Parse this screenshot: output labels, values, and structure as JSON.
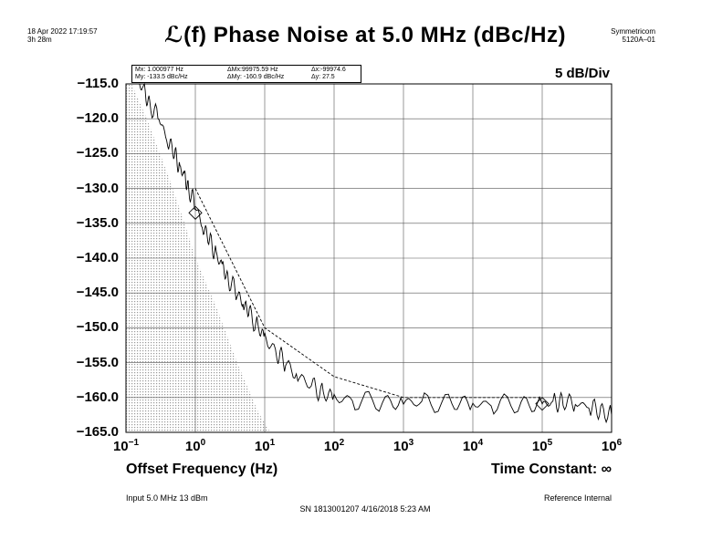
{
  "header": {
    "timestamp": "18 Apr 2022 17:19:57",
    "elapsed": "3h 28m",
    "brand_line1": "Symmetricom",
    "brand_line2": "5120A–01",
    "scale": "5 dB/Div"
  },
  "markers": {
    "mx": "Mx: 1.000977  Hz",
    "my": "My:    -133.5  dBc/Hz",
    "dmx": "ΔMx:99975.59  Hz",
    "dmy": "ΔMy:   -160.9  dBc/Hz",
    "dx": "Δx:-99974.6",
    "dy": "Δy:       27.5"
  },
  "footer": {
    "time_constant": "Time Constant: ∞",
    "input": "Input 5.0 MHz 13 dBm",
    "reference": "Reference Internal",
    "serial": "SN 1813001207 4/16/2018 5:23 AM"
  },
  "chart_data": {
    "type": "line",
    "title": "ℒ(f) Phase Noise at 5.0 MHz (dBc/Hz)",
    "xlabel": "Offset Frequency (Hz)",
    "ylabel": "",
    "x_scale": "log",
    "xlim": [
      0.1,
      1000000
    ],
    "ylim": [
      -165,
      -115
    ],
    "grid": true,
    "y_ticks": [
      "-115.0",
      "-120.0",
      "-125.0",
      "-130.0",
      "-135.0",
      "-140.0",
      "-145.0",
      "-150.0",
      "-155.0",
      "-160.0",
      "-165.0"
    ],
    "x_ticks": [
      {
        "base": "10",
        "exp": "−1",
        "value": 0.1
      },
      {
        "base": "10",
        "exp": "0",
        "value": 1
      },
      {
        "base": "10",
        "exp": "1",
        "value": 10
      },
      {
        "base": "10",
        "exp": "2",
        "value": 100
      },
      {
        "base": "10",
        "exp": "3",
        "value": 1000
      },
      {
        "base": "10",
        "exp": "4",
        "value": 10000
      },
      {
        "base": "10",
        "exp": "5",
        "value": 100000
      },
      {
        "base": "10",
        "exp": "6",
        "value": 1000000
      }
    ],
    "series": [
      {
        "role": "measured",
        "x": [
          0.15,
          0.18,
          0.22,
          0.3,
          0.4,
          0.5,
          0.6,
          0.7,
          0.8,
          1.0,
          1.3,
          1.6,
          2,
          2.5,
          3,
          4,
          5,
          6,
          8,
          10,
          15,
          20,
          30,
          50,
          70,
          100,
          200,
          500,
          1000,
          2000,
          5000,
          10000,
          20000,
          50000,
          100000,
          150000,
          200000,
          300000,
          500000,
          700000,
          1000000
        ],
        "y": [
          -115,
          -116,
          -118,
          -120,
          -123,
          -125,
          -127,
          -128.5,
          -130,
          -132.5,
          -135.5,
          -137.5,
          -139.5,
          -141.5,
          -143,
          -145,
          -146.5,
          -148,
          -150,
          -151.5,
          -153.5,
          -155,
          -157,
          -158.5,
          -159.5,
          -160,
          -160.4,
          -160.6,
          -160.7,
          -160.8,
          -160.8,
          -160.9,
          -160.9,
          -160.9,
          -161,
          -160.8,
          -160.6,
          -160.8,
          -161.3,
          -162,
          -162.5
        ]
      },
      {
        "role": "limit",
        "x": [
          1,
          10,
          100,
          1000,
          100000
        ],
        "y": [
          -130,
          -150,
          -157,
          -160,
          -160
        ]
      }
    ],
    "marker_points": [
      {
        "x": 1.000977,
        "y": -133.5
      },
      {
        "x": 99975.59,
        "y": -160.9
      }
    ]
  }
}
